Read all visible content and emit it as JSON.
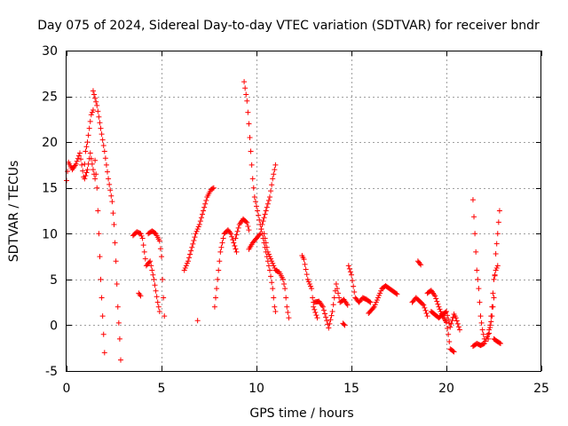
{
  "chart_data": {
    "type": "scatter",
    "title": "Day 075 of 2024, Sidereal Day-to-day VTEC variation (SDTVAR) for receiver bndr",
    "xlabel": "GPS time / hours",
    "ylabel": "SDTVAR / TECUs",
    "xlim": [
      0,
      25
    ],
    "ylim": [
      -5,
      30
    ],
    "xticks": [
      0,
      5,
      10,
      15,
      20,
      25
    ],
    "yticks": [
      -5,
      0,
      5,
      10,
      15,
      20,
      25,
      30
    ],
    "grid": true,
    "marker": "+",
    "color": "#ff0000",
    "segments": [
      [
        [
          0.0,
          15.8
        ],
        [
          0.1,
          17.8
        ],
        [
          0.3,
          17.0
        ],
        [
          0.5,
          17.6
        ],
        [
          0.7,
          18.8
        ],
        [
          0.8,
          17.5
        ],
        [
          0.9,
          16.2
        ],
        [
          1.0,
          19.0
        ],
        [
          1.1,
          20.0
        ],
        [
          1.2,
          21.5
        ],
        [
          1.3,
          23.0
        ],
        [
          1.4,
          23.5
        ]
      ],
      [
        [
          0.95,
          16.0
        ],
        [
          1.1,
          17.0
        ],
        [
          1.25,
          18.8
        ],
        [
          1.4,
          17.0
        ],
        [
          1.5,
          16.0
        ]
      ],
      [
        [
          1.4,
          25.6
        ],
        [
          1.6,
          24.0
        ],
        [
          1.8,
          21.5
        ],
        [
          2.0,
          19.0
        ],
        [
          2.2,
          16.0
        ],
        [
          2.4,
          13.5
        ],
        [
          2.5,
          11.0
        ],
        [
          2.6,
          7.0
        ],
        [
          2.7,
          2.0
        ],
        [
          2.8,
          -1.5
        ],
        [
          2.85,
          -3.8
        ]
      ],
      [
        [
          1.5,
          18.0
        ],
        [
          1.6,
          15.0
        ],
        [
          1.7,
          10.0
        ],
        [
          1.8,
          5.0
        ],
        [
          1.9,
          1.0
        ],
        [
          2.0,
          -3.0
        ]
      ],
      [
        [
          3.5,
          9.8
        ],
        [
          3.7,
          10.2
        ],
        [
          3.9,
          10.0
        ],
        [
          4.0,
          9.5
        ],
        [
          4.1,
          8.0
        ],
        [
          4.2,
          6.5
        ],
        [
          4.4,
          7.0
        ],
        [
          4.6,
          5.0
        ],
        [
          4.8,
          2.5
        ],
        [
          4.9,
          1.5
        ]
      ],
      [
        [
          4.3,
          10.0
        ],
        [
          4.5,
          10.3
        ],
        [
          4.7,
          10.0
        ],
        [
          4.9,
          9.2
        ],
        [
          5.0,
          7.5
        ],
        [
          5.05,
          5.0
        ],
        [
          5.1,
          3.0
        ],
        [
          5.15,
          1.0
        ]
      ],
      [
        [
          3.8,
          3.5
        ],
        [
          3.9,
          3.2
        ]
      ],
      [
        [
          6.2,
          6.0
        ],
        [
          6.4,
          7.0
        ],
        [
          6.6,
          8.5
        ],
        [
          6.8,
          10.0
        ],
        [
          7.0,
          11.0
        ],
        [
          7.2,
          12.5
        ],
        [
          7.4,
          14.0
        ],
        [
          7.6,
          14.8
        ],
        [
          7.75,
          15.0
        ]
      ],
      [
        [
          6.9,
          0.5
        ]
      ],
      [
        [
          7.8,
          2.0
        ],
        [
          7.9,
          4.0
        ],
        [
          8.0,
          6.0
        ],
        [
          8.1,
          8.0
        ],
        [
          8.3,
          10.0
        ],
        [
          8.5,
          10.4
        ],
        [
          8.65,
          10.0
        ],
        [
          8.8,
          9.0
        ],
        [
          8.95,
          8.0
        ]
      ],
      [
        [
          8.9,
          9.5
        ],
        [
          9.1,
          11.0
        ],
        [
          9.3,
          11.6
        ],
        [
          9.5,
          11.2
        ],
        [
          9.6,
          10.4
        ]
      ],
      [
        [
          9.35,
          26.6
        ],
        [
          9.5,
          24.5
        ],
        [
          9.6,
          22.0
        ],
        [
          9.7,
          19.0
        ],
        [
          9.8,
          16.0
        ],
        [
          9.9,
          14.0
        ],
        [
          10.1,
          12.0
        ],
        [
          10.3,
          10.0
        ],
        [
          10.5,
          8.0
        ],
        [
          10.7,
          6.0
        ],
        [
          10.85,
          4.0
        ],
        [
          10.95,
          2.0
        ],
        [
          11.0,
          1.5
        ]
      ],
      [
        [
          9.6,
          8.3
        ],
        [
          9.8,
          9.0
        ],
        [
          10.0,
          9.5
        ],
        [
          10.2,
          10.0
        ],
        [
          10.3,
          11.0
        ],
        [
          10.5,
          12.5
        ],
        [
          10.7,
          14.0
        ],
        [
          10.85,
          16.0
        ],
        [
          11.0,
          17.5
        ]
      ],
      [
        [
          10.4,
          10.0
        ],
        [
          10.6,
          8.0
        ],
        [
          10.8,
          7.0
        ],
        [
          11.0,
          6.0
        ],
        [
          11.2,
          5.8
        ],
        [
          11.4,
          5.0
        ],
        [
          11.5,
          4.0
        ],
        [
          11.6,
          2.0
        ],
        [
          11.7,
          0.8
        ]
      ],
      [
        [
          12.4,
          7.6
        ],
        [
          12.5,
          7.2
        ],
        [
          12.7,
          5.0
        ],
        [
          12.9,
          4.0
        ],
        [
          13.0,
          2.0
        ],
        [
          13.2,
          0.8
        ]
      ],
      [
        [
          13.0,
          2.5
        ],
        [
          13.3,
          2.6
        ],
        [
          13.5,
          2.0
        ],
        [
          13.7,
          0.5
        ],
        [
          13.8,
          -0.3
        ],
        [
          14.0,
          1.5
        ],
        [
          14.2,
          4.5
        ],
        [
          14.4,
          2.5
        ],
        [
          14.6,
          2.8
        ],
        [
          14.8,
          2.2
        ]
      ],
      [
        [
          14.55,
          0.2
        ],
        [
          14.65,
          0.0
        ]
      ],
      [
        [
          14.85,
          6.5
        ],
        [
          15.0,
          5.5
        ],
        [
          15.2,
          3.0
        ],
        [
          15.4,
          2.5
        ],
        [
          15.6,
          3.0
        ],
        [
          15.8,
          2.8
        ],
        [
          16.0,
          2.5
        ]
      ],
      [
        [
          15.9,
          1.3
        ],
        [
          16.2,
          2.0
        ],
        [
          16.4,
          3.0
        ],
        [
          16.6,
          4.0
        ],
        [
          16.8,
          4.3
        ],
        [
          17.0,
          4.0
        ],
        [
          17.2,
          3.7
        ],
        [
          17.4,
          3.4
        ]
      ],
      [
        [
          18.5,
          7.0
        ],
        [
          18.65,
          6.6
        ]
      ],
      [
        [
          18.2,
          2.5
        ],
        [
          18.4,
          3.0
        ],
        [
          18.6,
          2.6
        ],
        [
          18.8,
          2.2
        ],
        [
          19.0,
          1.0
        ]
      ],
      [
        [
          19.0,
          3.5
        ],
        [
          19.2,
          3.8
        ],
        [
          19.4,
          3.2
        ],
        [
          19.6,
          2.0
        ],
        [
          19.8,
          1.0
        ],
        [
          20.0,
          0.3
        ],
        [
          20.1,
          -1.0
        ],
        [
          20.2,
          -2.6
        ],
        [
          20.4,
          -2.9
        ]
      ],
      [
        [
          19.2,
          1.5
        ],
        [
          19.6,
          0.8
        ],
        [
          20.0,
          1.5
        ],
        [
          20.2,
          -0.2
        ],
        [
          20.4,
          1.2
        ],
        [
          20.5,
          0.8
        ],
        [
          20.7,
          -0.5
        ]
      ],
      [
        [
          21.4,
          13.7
        ],
        [
          21.5,
          10.0
        ],
        [
          21.6,
          6.0
        ],
        [
          21.7,
          4.0
        ],
        [
          21.8,
          1.0
        ],
        [
          21.9,
          -0.5
        ],
        [
          22.0,
          -1.5
        ]
      ],
      [
        [
          21.4,
          -2.3
        ],
        [
          21.6,
          -2.0
        ],
        [
          21.8,
          -2.2
        ],
        [
          22.0,
          -2.0
        ],
        [
          22.2,
          -1.0
        ],
        [
          22.3,
          0.0
        ],
        [
          22.4,
          2.0
        ],
        [
          22.5,
          5.0
        ],
        [
          22.6,
          6.0
        ],
        [
          22.7,
          6.5
        ]
      ],
      [
        [
          22.2,
          -1.5
        ],
        [
          22.4,
          1.0
        ],
        [
          22.5,
          3.0
        ],
        [
          22.6,
          7.8
        ],
        [
          22.7,
          10.0
        ],
        [
          22.8,
          12.5
        ]
      ],
      [
        [
          22.5,
          -1.5
        ],
        [
          22.7,
          -1.8
        ],
        [
          22.85,
          -2.0
        ]
      ]
    ]
  }
}
